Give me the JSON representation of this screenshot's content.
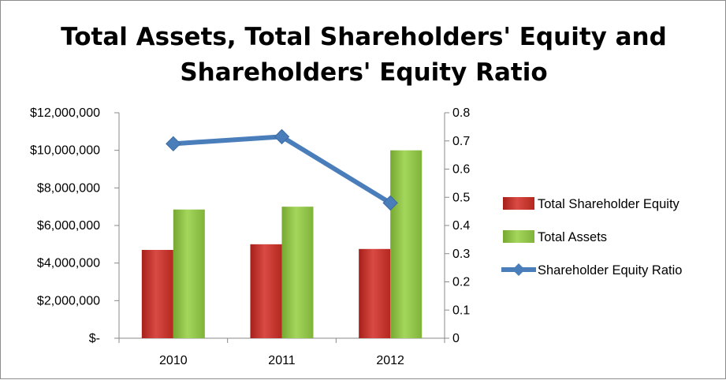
{
  "chart_data": {
    "type": "bar",
    "title_lines": [
      "Total Assets, Total Shareholders' Equity and",
      "Shareholders' Equity Ratio"
    ],
    "categories": [
      "2010",
      "2011",
      "2012"
    ],
    "series": [
      {
        "name": "Total Shareholder Equity",
        "type": "bar",
        "axis": "left",
        "color": "#c0392b",
        "values": [
          4700000,
          5000000,
          4750000
        ]
      },
      {
        "name": "Total Assets",
        "type": "bar",
        "axis": "left",
        "color": "#8cc641",
        "values": [
          6850000,
          7000000,
          10000000
        ]
      },
      {
        "name": "Shareholder Equity Ratio",
        "type": "line",
        "axis": "right",
        "color": "#4a7ebb",
        "values": [
          0.69,
          0.715,
          0.48
        ]
      }
    ],
    "y_left": {
      "ylim": [
        0,
        12000000
      ],
      "tick_labels": [
        "$-",
        "$2,000,000",
        "$4,000,000",
        "$6,000,000",
        "$8,000,000",
        "$10,000,000",
        "$12,000,000"
      ]
    },
    "y_right": {
      "ylim": [
        0,
        0.8
      ],
      "tick_labels": [
        "0",
        "0.1",
        "0.2",
        "0.3",
        "0.4",
        "0.5",
        "0.6",
        "0.7",
        "0.8"
      ]
    },
    "grid": false,
    "legend_position": "right"
  }
}
